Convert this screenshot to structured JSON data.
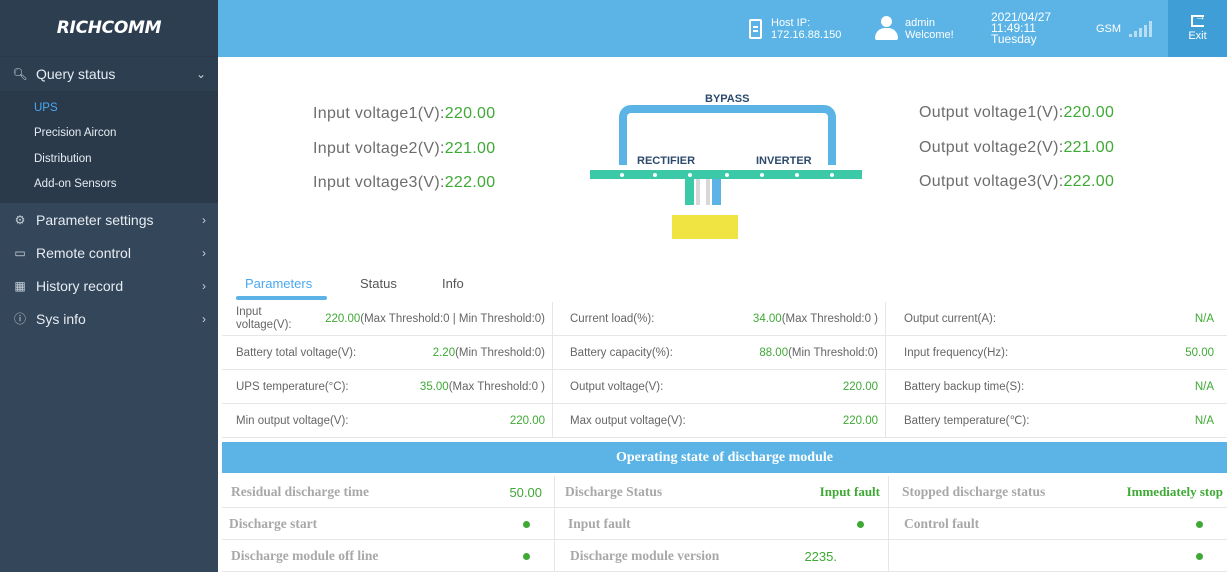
{
  "app": {
    "logo": "RICHCOMM"
  },
  "sidebar": {
    "items": [
      {
        "label": "Query status",
        "icon": "search-icon",
        "open": true,
        "children": [
          {
            "label": "UPS",
            "active": true
          },
          {
            "label": "Precision Aircon"
          },
          {
            "label": "Distribution"
          },
          {
            "label": "Add-on Sensors"
          }
        ]
      },
      {
        "label": "Parameter settings",
        "icon": "gear-icon"
      },
      {
        "label": "Remote control",
        "icon": "monitor-icon"
      },
      {
        "label": "History record",
        "icon": "calendar-icon"
      },
      {
        "label": "Sys info",
        "icon": "info-icon"
      }
    ]
  },
  "topbar": {
    "host_label": "Host IP:",
    "host_ip": "172.16.88.150",
    "user_name": "admin",
    "user_greeting": "Welcome!",
    "date": "2021/04/27",
    "time": "11:49:11",
    "weekday": "Tuesday",
    "gsm_label": "GSM",
    "exit_label": "Exit"
  },
  "inputs": [
    {
      "label": "Input voltage1(V):",
      "value": "220.00"
    },
    {
      "label": "Input voltage2(V):",
      "value": "221.00"
    },
    {
      "label": "Input voltage3(V):",
      "value": "222.00"
    }
  ],
  "outputs": [
    {
      "label": "Output voltage1(V):",
      "value": "220.00"
    },
    {
      "label": "Output voltage2(V):",
      "value": "221.00"
    },
    {
      "label": "Output voltage3(V):",
      "value": "222.00"
    }
  ],
  "diagram": {
    "bypass": "BYPASS",
    "rectifier": "RECTIFIER",
    "inverter": "INVERTER"
  },
  "tabs": [
    "Parameters",
    "Status",
    "Info"
  ],
  "active_tab": "Parameters",
  "params": [
    [
      {
        "label": "Input voltage(V):",
        "value": "220.00",
        "suffix": "(Max Threshold:0 | Min Threshold:0)"
      },
      {
        "label": "Current load(%):",
        "value": "34.00",
        "suffix": "(Max Threshold:0 )"
      },
      {
        "label": "Output current(A):",
        "value": "N/A",
        "suffix": ""
      }
    ],
    [
      {
        "label": "Battery total voltage(V):",
        "value": "2.20",
        "suffix": "(Min Threshold:0)"
      },
      {
        "label": "Battery capacity(%):",
        "value": "88.00",
        "suffix": "(Min Threshold:0)"
      },
      {
        "label": "Input frequency(Hz):",
        "value": "50.00",
        "suffix": ""
      }
    ],
    [
      {
        "label": "UPS temperature(°C):",
        "value": "35.00",
        "suffix": "(Max Threshold:0 )"
      },
      {
        "label": "Output voltage(V):",
        "value": "220.00",
        "suffix": ""
      },
      {
        "label": "Battery backup time(S):",
        "value": "N/A",
        "suffix": ""
      }
    ],
    [
      {
        "label": "Min output voltage(V):",
        "value": "220.00",
        "suffix": ""
      },
      {
        "label": "Max output voltage(V):",
        "value": "220.00",
        "suffix": ""
      },
      {
        "label": "Battery temperature(℃):",
        "value": "N/A",
        "suffix": ""
      }
    ]
  ],
  "discharge": {
    "title": "Operating state of discharge module",
    "rows": [
      [
        {
          "label": "Residual discharge time",
          "value": "50.00",
          "kind": "plain"
        },
        {
          "label": "Discharge Status",
          "value": "Input fault",
          "kind": "green-bold"
        },
        {
          "label": "Stopped discharge status",
          "value": "Immediately stop",
          "kind": "green-bold"
        }
      ],
      [
        {
          "label": "Discharge start",
          "value": "",
          "kind": "dot"
        },
        {
          "label": "Input fault",
          "value": "",
          "kind": "dot"
        },
        {
          "label": "Control fault",
          "value": "",
          "kind": "dot"
        }
      ],
      [
        {
          "label": "Discharge module off line",
          "value": "",
          "kind": "dot"
        },
        {
          "label": "Discharge module version",
          "value": "2235.",
          "kind": "plain"
        },
        {
          "label": "",
          "value": "",
          "kind": "dot"
        }
      ]
    ]
  },
  "colors": {
    "accent": "#5bb4e5",
    "sidebar": "#34465a",
    "value_green": "#3fa935",
    "bus_green": "#3cc9a8",
    "battery": "#f0e442"
  }
}
